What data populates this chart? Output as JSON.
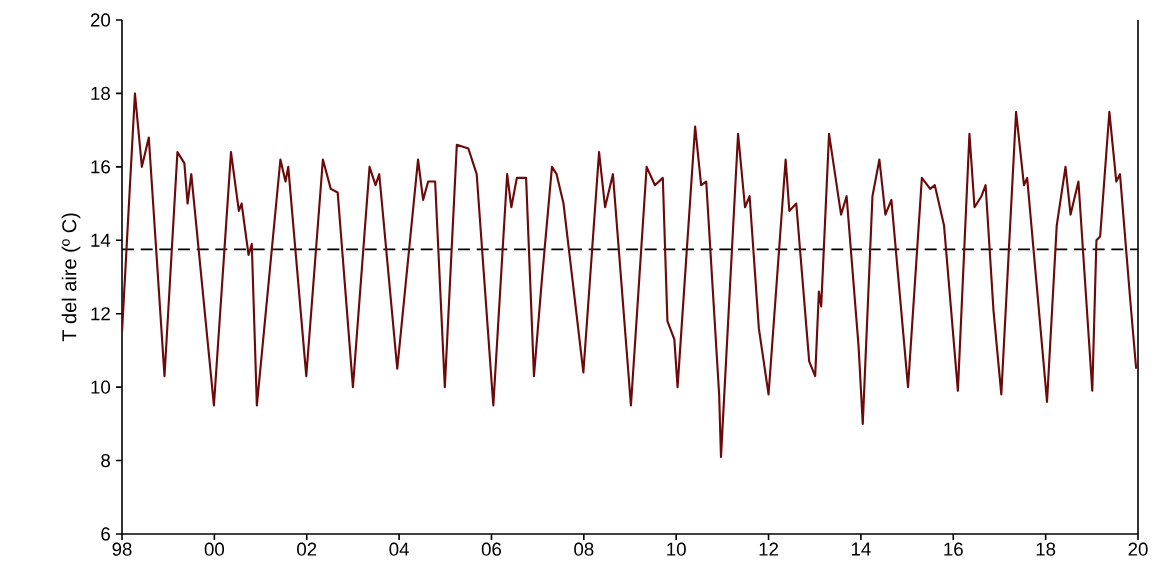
{
  "chart_data": {
    "type": "line",
    "ylabel": "T del aire (º C)",
    "xlim": [
      1998,
      2020
    ],
    "ylim": [
      6,
      20
    ],
    "xticks": [
      {
        "value": 1998,
        "label": "98"
      },
      {
        "value": 2000,
        "label": "00"
      },
      {
        "value": 2002,
        "label": "02"
      },
      {
        "value": 2004,
        "label": "04"
      },
      {
        "value": 2006,
        "label": "06"
      },
      {
        "value": 2008,
        "label": "08"
      },
      {
        "value": 2010,
        "label": "10"
      },
      {
        "value": 2012,
        "label": "12"
      },
      {
        "value": 2014,
        "label": "14"
      },
      {
        "value": 2016,
        "label": "16"
      },
      {
        "value": 2018,
        "label": "18"
      },
      {
        "value": 2020,
        "label": "20"
      }
    ],
    "yticks": [
      6,
      8,
      10,
      12,
      14,
      16,
      18,
      20
    ],
    "grid": false,
    "ref_lines": [
      {
        "axis": "y",
        "value": 13.75,
        "color": "#000000",
        "line_style": "dashed"
      }
    ],
    "series": [
      {
        "color": "#6b0a0a",
        "x": [
          1998.0,
          1998.28,
          1998.43,
          1998.58,
          1998.92,
          1999.2,
          1999.35,
          1999.42,
          1999.5,
          1999.99,
          2000.36,
          2000.53,
          2000.59,
          2000.74,
          2000.81,
          2000.92,
          2001.43,
          2001.54,
          2001.6,
          2001.99,
          2002.35,
          2002.52,
          2002.67,
          2003.0,
          2003.36,
          2003.49,
          2003.57,
          2003.96,
          2004.41,
          2004.52,
          2004.63,
          2004.78,
          2004.99,
          2005.25,
          2005.5,
          2005.68,
          2006.04,
          2006.34,
          2006.43,
          2006.55,
          2006.75,
          2006.92,
          2007.09,
          2007.31,
          2007.41,
          2007.56,
          2007.99,
          2008.33,
          2008.46,
          2008.63,
          2009.02,
          2009.36,
          2009.54,
          2009.71,
          2009.81,
          2009.96,
          2010.03,
          2010.41,
          2010.54,
          2010.65,
          2010.93,
          2010.97,
          2011.34,
          2011.49,
          2011.59,
          2011.79,
          2012.0,
          2012.37,
          2012.45,
          2012.6,
          2012.88,
          2013.01,
          2013.09,
          2013.14,
          2013.31,
          2013.57,
          2013.69,
          2013.95,
          2014.04,
          2014.25,
          2014.4,
          2014.53,
          2014.66,
          2015.02,
          2015.32,
          2015.5,
          2015.6,
          2015.8,
          2016.1,
          2016.35,
          2016.46,
          2016.61,
          2016.7,
          2016.87,
          2017.04,
          2017.36,
          2017.53,
          2017.6,
          2018.03,
          2018.24,
          2018.43,
          2018.54,
          2018.71,
          2019.01,
          2019.1,
          2019.18,
          2019.38,
          2019.53,
          2019.61,
          2019.83,
          2019.96
        ],
        "values": [
          11.5,
          18.0,
          16.0,
          16.8,
          10.3,
          16.4,
          16.1,
          15.0,
          15.8,
          9.5,
          16.4,
          14.8,
          15.0,
          13.6,
          13.9,
          9.5,
          16.2,
          15.6,
          16.0,
          10.3,
          16.2,
          15.4,
          15.3,
          10.0,
          16.0,
          15.5,
          15.8,
          10.5,
          16.2,
          15.1,
          15.6,
          15.6,
          10.0,
          16.6,
          16.5,
          15.8,
          9.5,
          15.8,
          14.9,
          15.7,
          15.7,
          10.3,
          12.9,
          16.0,
          15.8,
          15.0,
          10.4,
          16.4,
          14.9,
          15.8,
          9.5,
          16.0,
          15.5,
          15.7,
          11.8,
          11.3,
          10.0,
          17.1,
          15.5,
          15.6,
          9.8,
          8.1,
          16.9,
          14.9,
          15.2,
          11.6,
          9.8,
          16.2,
          14.8,
          15.0,
          10.7,
          10.3,
          12.6,
          12.2,
          16.9,
          14.7,
          15.2,
          11.1,
          9.0,
          15.2,
          16.2,
          14.7,
          15.1,
          10.0,
          15.7,
          15.4,
          15.5,
          14.4,
          9.9,
          16.9,
          14.9,
          15.2,
          15.5,
          12.1,
          9.8,
          17.5,
          15.5,
          15.7,
          9.6,
          14.4,
          16.0,
          14.7,
          15.6,
          9.9,
          14.0,
          14.1,
          17.5,
          15.6,
          15.8,
          12.4,
          10.5
        ]
      }
    ]
  }
}
